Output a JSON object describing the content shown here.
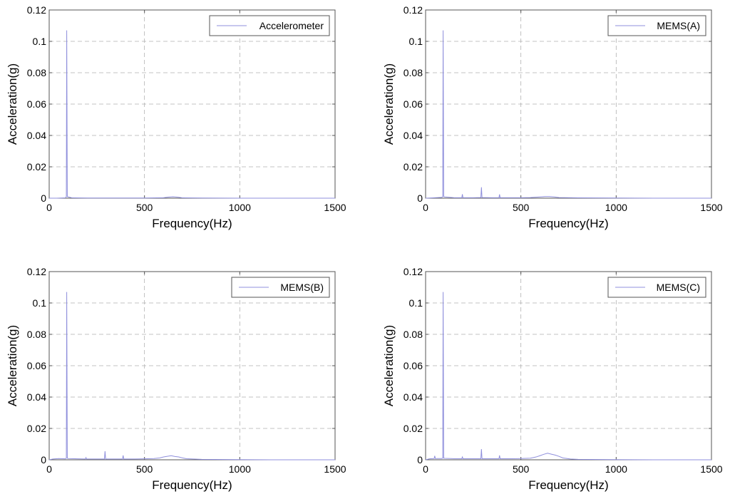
{
  "chart_data": [
    {
      "type": "line",
      "xlabel": "Frequency(Hz)",
      "ylabel": "Acceleration(g)",
      "xlim": [
        0,
        1500
      ],
      "ylim": [
        0,
        0.12
      ],
      "xticks": [
        "0",
        "500",
        "1000",
        "1500"
      ],
      "yticks": [
        "0",
        "0.02",
        "0.04",
        "0.06",
        "0.08",
        "0.1",
        "0.12"
      ],
      "grid": true,
      "legend_position": "top-right",
      "color": "#8f8fdc",
      "series": [
        {
          "name": "Accelerometer",
          "x": [
            0,
            40,
            85,
            90,
            92,
            95,
            100,
            120,
            200,
            300,
            400,
            500,
            600,
            625,
            650,
            675,
            700,
            800,
            1000,
            1200,
            1500
          ],
          "y": [
            0,
            0,
            0.0002,
            0.001,
            0.107,
            0.001,
            0.0008,
            0.0002,
            0.0001,
            0.0001,
            0.0001,
            0.0001,
            0.0003,
            0.0007,
            0.0009,
            0.0006,
            0.0002,
            0.0001,
            0,
            0,
            0
          ]
        }
      ]
    },
    {
      "type": "line",
      "xlabel": "Frequency(Hz)",
      "ylabel": "Acceleration(g)",
      "xlim": [
        0,
        1500
      ],
      "ylim": [
        0,
        0.12
      ],
      "xticks": [
        "0",
        "500",
        "1000",
        "1500"
      ],
      "yticks": [
        "0",
        "0.02",
        "0.04",
        "0.06",
        "0.08",
        "0.1",
        "0.12"
      ],
      "grid": true,
      "legend_position": "top-right",
      "color": "#8f8fdc",
      "series": [
        {
          "name": "MEMS(A)",
          "x": [
            0,
            40,
            85,
            90,
            92,
            95,
            100,
            150,
            190,
            193,
            196,
            250,
            290,
            293,
            296,
            350,
            385,
            388,
            391,
            450,
            500,
            550,
            600,
            625,
            650,
            675,
            700,
            800,
            1000,
            1200,
            1500
          ],
          "y": [
            0,
            0.0002,
            0.0005,
            0.001,
            0.107,
            0.001,
            0.0008,
            0.0003,
            0.0003,
            0.0025,
            0.0003,
            0.0003,
            0.0004,
            0.007,
            0.0004,
            0.0003,
            0.0003,
            0.0024,
            0.0003,
            0.0003,
            0.0003,
            0.0004,
            0.0008,
            0.001,
            0.001,
            0.0008,
            0.0004,
            0.0002,
            0.0001,
            0,
            0
          ]
        }
      ]
    },
    {
      "type": "line",
      "xlabel": "Frequency(Hz)",
      "ylabel": "Acceleration(g)",
      "xlim": [
        0,
        1500
      ],
      "ylim": [
        0,
        0.12
      ],
      "xticks": [
        "0",
        "500",
        "1000",
        "1500"
      ],
      "yticks": [
        "0",
        "0.02",
        "0.04",
        "0.06",
        "0.08",
        "0.1",
        "0.12"
      ],
      "grid": true,
      "legend_position": "top-right",
      "color": "#8f8fdc",
      "series": [
        {
          "name": "MEMS(B)",
          "x": [
            0,
            20,
            50,
            85,
            90,
            92,
            95,
            100,
            150,
            190,
            193,
            196,
            250,
            290,
            293,
            296,
            350,
            385,
            388,
            391,
            450,
            500,
            550,
            580,
            600,
            620,
            640,
            660,
            680,
            700,
            720,
            800,
            1000,
            1200,
            1500
          ],
          "y": [
            0,
            0.0005,
            0.0008,
            0.0006,
            0.001,
            0.107,
            0.001,
            0.0008,
            0.0006,
            0.0005,
            0.0014,
            0.0005,
            0.0005,
            0.0005,
            0.0055,
            0.0005,
            0.0005,
            0.0005,
            0.0028,
            0.0005,
            0.0005,
            0.0006,
            0.0008,
            0.0012,
            0.0018,
            0.0022,
            0.0026,
            0.0021,
            0.0018,
            0.0012,
            0.0007,
            0.0003,
            0.0001,
            0,
            0
          ]
        }
      ]
    },
    {
      "type": "line",
      "xlabel": "Frequency(Hz)",
      "ylabel": "Acceleration(g)",
      "xlim": [
        0,
        1500
      ],
      "ylim": [
        0,
        0.12
      ],
      "xticks": [
        "0",
        "500",
        "1000",
        "1500"
      ],
      "yticks": [
        "0",
        "0.02",
        "0.04",
        "0.06",
        "0.08",
        "0.1",
        "0.12"
      ],
      "grid": true,
      "legend_position": "top-right",
      "color": "#8f8fdc",
      "series": [
        {
          "name": "MEMS(C)",
          "x": [
            0,
            20,
            45,
            48,
            51,
            85,
            90,
            92,
            95,
            100,
            150,
            190,
            193,
            196,
            250,
            290,
            293,
            296,
            350,
            385,
            388,
            391,
            450,
            500,
            550,
            580,
            600,
            620,
            640,
            660,
            680,
            700,
            720,
            760,
            800,
            1000,
            1200,
            1500
          ],
          "y": [
            0,
            0.0006,
            0.0008,
            0.0025,
            0.0008,
            0.0008,
            0.001,
            0.107,
            0.001,
            0.0009,
            0.0007,
            0.0007,
            0.0018,
            0.0007,
            0.0007,
            0.0007,
            0.0068,
            0.0007,
            0.0007,
            0.0007,
            0.0028,
            0.0007,
            0.0007,
            0.0008,
            0.001,
            0.0018,
            0.0026,
            0.0035,
            0.0042,
            0.0036,
            0.003,
            0.0022,
            0.0012,
            0.0005,
            0.0003,
            0.0001,
            0,
            0
          ]
        }
      ]
    }
  ]
}
